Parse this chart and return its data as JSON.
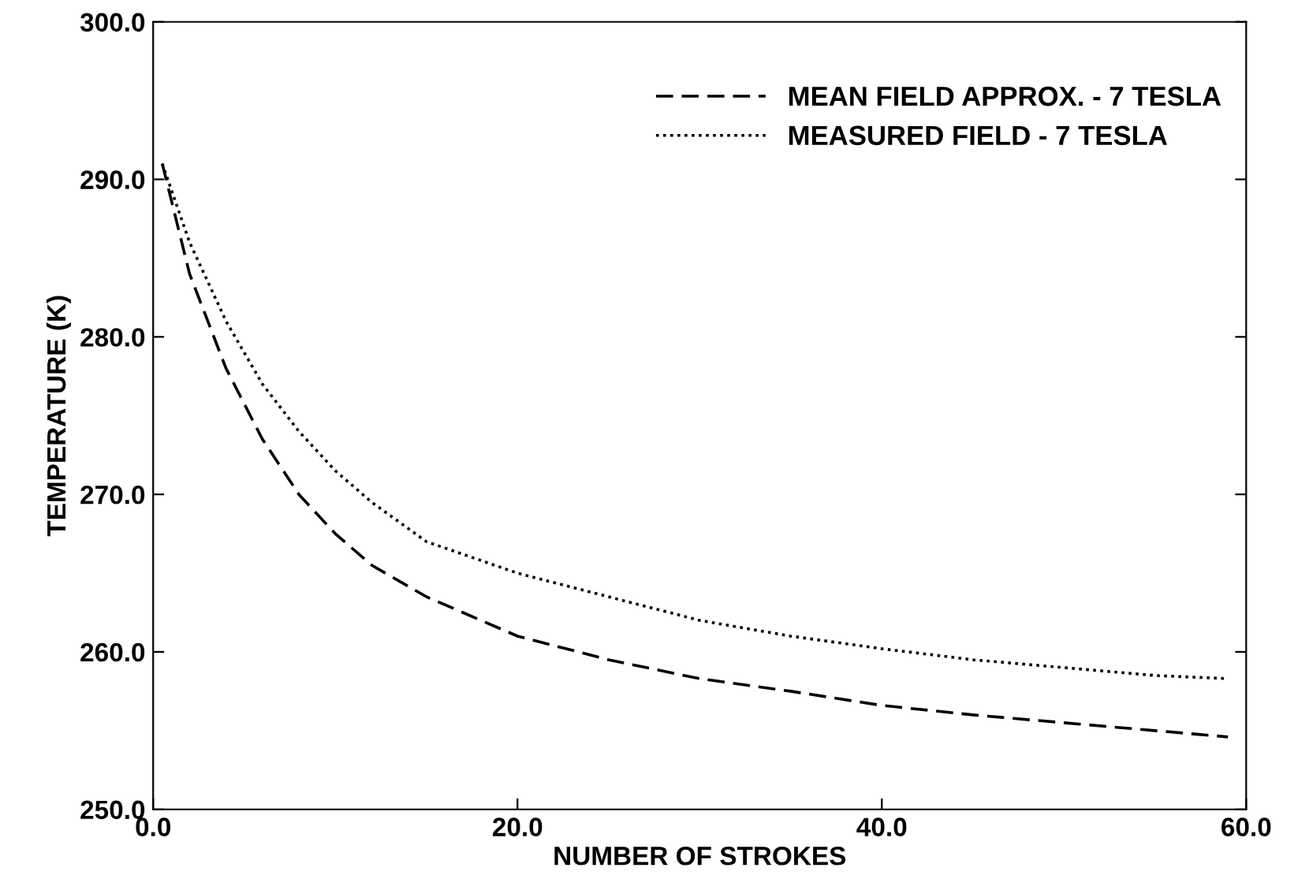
{
  "chart_data": {
    "type": "line",
    "xlabel": "NUMBER OF STROKES",
    "ylabel": "TEMPERATURE (K)",
    "xlim": [
      0,
      60
    ],
    "ylim": [
      250,
      300
    ],
    "xticks": [
      {
        "value": 0,
        "label": "0.0"
      },
      {
        "value": 20,
        "label": "20.0"
      },
      {
        "value": 40,
        "label": "40.0"
      },
      {
        "value": 60,
        "label": "60.0"
      }
    ],
    "yticks": [
      {
        "value": 250,
        "label": "250.0"
      },
      {
        "value": 260,
        "label": "260.0"
      },
      {
        "value": 270,
        "label": "270.0"
      },
      {
        "value": 280,
        "label": "280.0"
      },
      {
        "value": 290,
        "label": "290.0"
      },
      {
        "value": 300,
        "label": "300.0"
      }
    ],
    "grid": false,
    "legend": "top right",
    "series": [
      {
        "name": "MEAN FIELD APPROX. - 7 TESLA",
        "color": "#000000",
        "line_style": "dashed",
        "x": [
          0.5,
          2,
          4,
          6,
          8,
          10,
          12,
          15,
          20,
          25,
          30,
          35,
          40,
          45,
          50,
          55,
          59
        ],
        "values": [
          291,
          284,
          278,
          273.5,
          270,
          267.5,
          265.5,
          263.5,
          261,
          259.5,
          258.3,
          257.5,
          256.6,
          256,
          255.5,
          255,
          254.6
        ]
      },
      {
        "name": "MEASURED FIELD - 7 TESLA",
        "color": "#000000",
        "line_style": "dotted",
        "x": [
          0.5,
          2,
          4,
          6,
          8,
          10,
          12,
          15,
          20,
          25,
          30,
          35,
          40,
          45,
          50,
          55,
          59
        ],
        "values": [
          291,
          286,
          281,
          277,
          274,
          271.5,
          269.5,
          267,
          265,
          263.5,
          262,
          261,
          260.2,
          259.5,
          259,
          258.5,
          258.3
        ]
      }
    ]
  }
}
